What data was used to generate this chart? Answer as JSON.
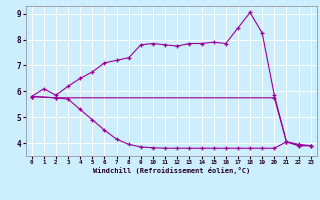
{
  "xlabel": "Windchill (Refroidissement éolien,°C)",
  "background_color": "#cceeff",
  "grid_color": "#ffffff",
  "line_color": "#990099",
  "xlim": [
    -0.5,
    23.5
  ],
  "ylim": [
    3.5,
    9.3
  ],
  "yticks": [
    4,
    5,
    6,
    7,
    8,
    9
  ],
  "xticks": [
    0,
    1,
    2,
    3,
    4,
    5,
    6,
    7,
    8,
    9,
    10,
    11,
    12,
    13,
    14,
    15,
    16,
    17,
    18,
    19,
    20,
    21,
    22,
    23
  ],
  "line1_x": [
    0,
    1,
    2,
    3,
    4,
    5,
    6,
    7,
    8,
    9,
    10,
    11,
    12,
    13,
    14,
    15,
    16,
    17,
    18,
    19,
    20,
    21,
    22,
    23
  ],
  "line1_y": [
    5.8,
    6.1,
    5.85,
    6.2,
    6.5,
    6.75,
    7.1,
    7.2,
    7.3,
    7.8,
    7.85,
    7.8,
    7.75,
    7.85,
    7.85,
    7.9,
    7.85,
    8.45,
    9.05,
    8.25,
    5.85,
    4.05,
    3.95,
    3.9
  ],
  "line2_x": [
    0,
    2,
    20,
    21,
    22,
    23
  ],
  "line2_y": [
    5.8,
    5.75,
    5.75,
    4.05,
    3.9,
    3.9
  ],
  "line3_x": [
    0,
    2,
    3,
    4,
    5,
    6,
    7,
    8,
    9,
    10,
    11,
    12,
    13,
    14,
    15,
    16,
    17,
    18,
    19,
    20,
    21,
    22,
    23
  ],
  "line3_y": [
    5.8,
    5.75,
    5.7,
    5.3,
    4.9,
    4.5,
    4.15,
    3.95,
    3.85,
    3.82,
    3.8,
    3.8,
    3.8,
    3.8,
    3.8,
    3.8,
    3.8,
    3.8,
    3.8,
    3.8,
    4.05,
    3.9,
    3.9
  ]
}
